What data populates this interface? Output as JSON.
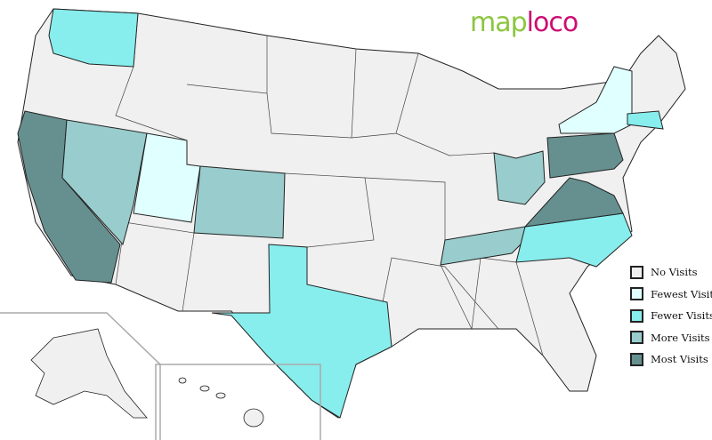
{
  "logo": {
    "part1": "map",
    "part2": "loco"
  },
  "colors": {
    "none": "#f0f0f0",
    "fewest": "#e0ffff",
    "fewer": "#88eded",
    "more": "#99cccc",
    "most": "#669090",
    "border": "#222222"
  },
  "legend": [
    {
      "label": "No Visits",
      "level": "none"
    },
    {
      "label": "Fewest Visits",
      "level": "fewest"
    },
    {
      "label": "Fewer Visits",
      "level": "fewer"
    },
    {
      "label": "More Visits",
      "level": "more"
    },
    {
      "label": "Most Visits",
      "level": "most"
    }
  ],
  "states": [
    {
      "name": "Washington",
      "level": "fewer"
    },
    {
      "name": "California",
      "level": "most"
    },
    {
      "name": "Nevada",
      "level": "more"
    },
    {
      "name": "Utah",
      "level": "fewest"
    },
    {
      "name": "Colorado",
      "level": "more"
    },
    {
      "name": "Texas",
      "level": "fewer"
    },
    {
      "name": "Ohio",
      "level": "more"
    },
    {
      "name": "Tennessee",
      "level": "more"
    },
    {
      "name": "North Carolina",
      "level": "fewer"
    },
    {
      "name": "Virginia",
      "level": "most"
    },
    {
      "name": "Pennsylvania",
      "level": "most"
    },
    {
      "name": "New York",
      "level": "fewest"
    },
    {
      "name": "Massachusetts",
      "level": "fewer"
    }
  ]
}
